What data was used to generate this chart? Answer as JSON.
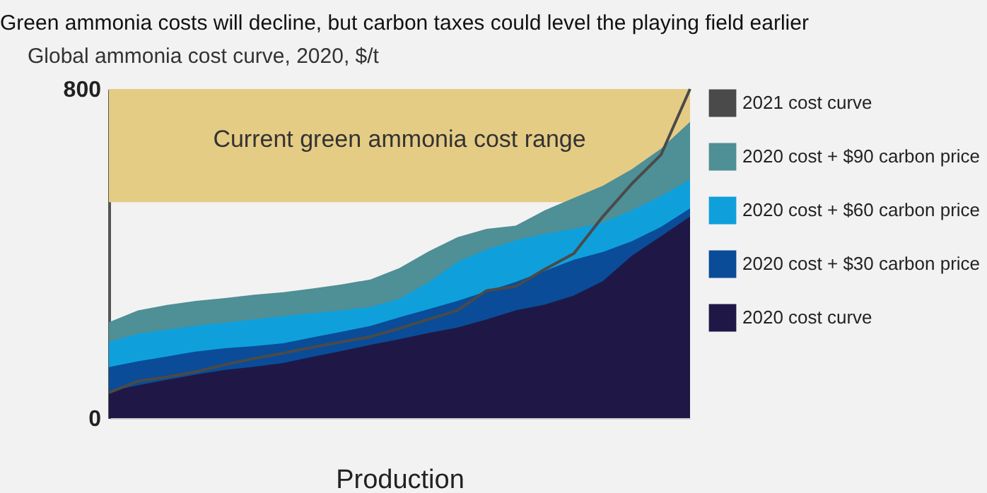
{
  "chart_data": {
    "type": "area",
    "title": "Green ammonia costs will decline, but carbon taxes could level the playing field earlier",
    "ylabel": "Global ammonia cost curve, 2020, $/t",
    "xlabel": "Production",
    "categories": [
      null,
      null,
      null,
      null,
      null,
      null,
      null,
      null,
      null,
      null,
      null,
      null,
      null,
      null,
      null,
      null,
      null,
      null,
      null,
      null,
      null
    ],
    "ylim": [
      0,
      800
    ],
    "yticks": [
      0,
      800
    ],
    "tick_labels": "y",
    "grid": false,
    "legend": "right",
    "bands": [
      {
        "axis": "y",
        "from": 525,
        "to": 800,
        "label": "Current green ammonia cost range",
        "color": "#e5cc85"
      }
    ],
    "series": [
      {
        "name": "2021 cost curve",
        "type": "line",
        "color": "#4a4a4a",
        "values": [
          62,
          90,
          100,
          113,
          130,
          145,
          158,
          172,
          185,
          198,
          218,
          240,
          262,
          310,
          320,
          362,
          400,
          490,
          570,
          640,
          800
        ]
      },
      {
        "name": "2020 cost + $90 carbon price",
        "color": "#4f8f96",
        "values": [
          233,
          262,
          275,
          285,
          292,
          300,
          306,
          315,
          325,
          337,
          365,
          405,
          440,
          460,
          468,
          505,
          535,
          565,
          605,
          655,
          720
        ]
      },
      {
        "name": "2020 cost + $60 carbon price",
        "color": "#0fa0dc",
        "values": [
          185,
          205,
          215,
          225,
          232,
          240,
          248,
          255,
          262,
          270,
          290,
          330,
          380,
          410,
          432,
          448,
          460,
          475,
          505,
          540,
          580
        ]
      },
      {
        "name": "2020 cost + $30 carbon price",
        "color": "#0a4c97",
        "values": [
          124,
          138,
          150,
          162,
          170,
          175,
          182,
          196,
          210,
          224,
          245,
          265,
          285,
          308,
          331,
          358,
          385,
          404,
          430,
          465,
          510
        ]
      },
      {
        "name": "2020 cost curve",
        "color": "#1f1846",
        "values": [
          65,
          80,
          93,
          106,
          117,
          125,
          134,
          149,
          163,
          178,
          192,
          207,
          220,
          240,
          262,
          276,
          298,
          333,
          395,
          442,
          490
        ]
      }
    ]
  }
}
